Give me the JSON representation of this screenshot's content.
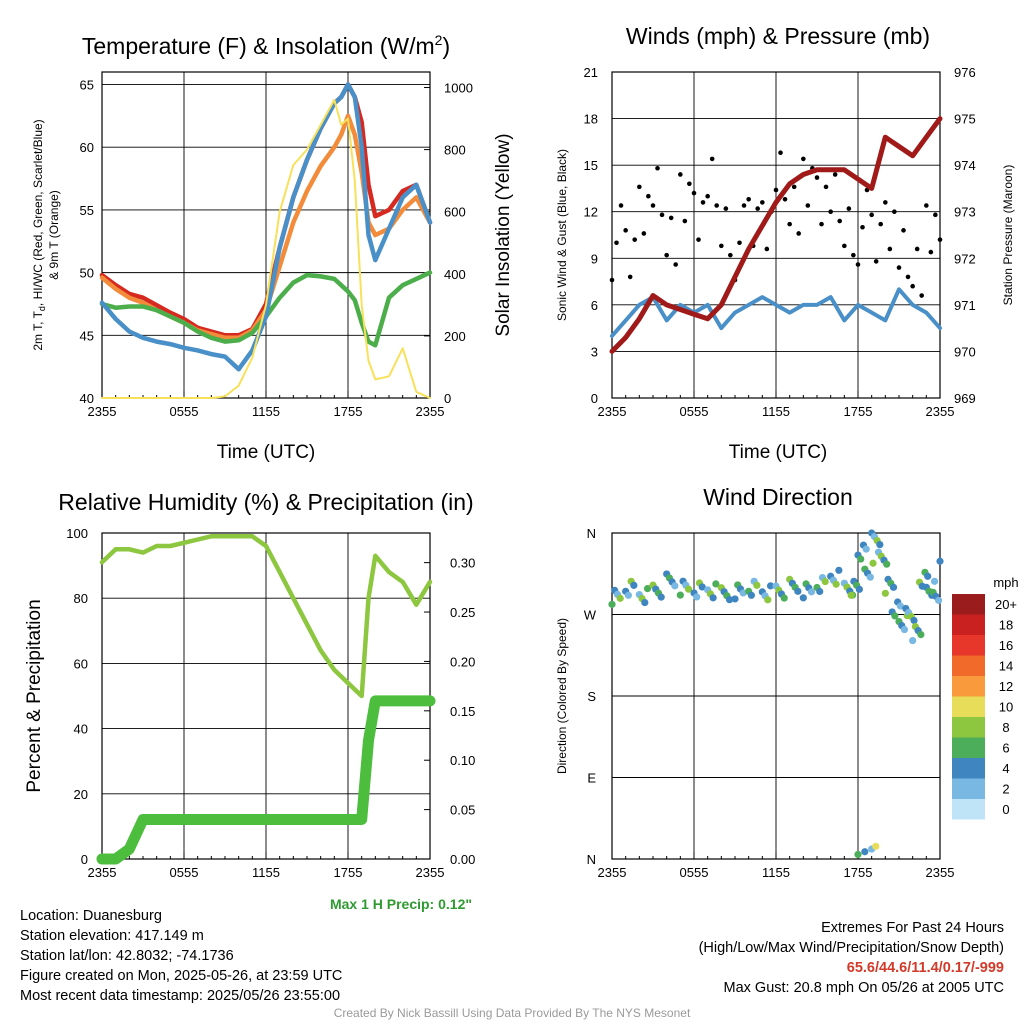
{
  "colors": {
    "red": "#d62920",
    "orange": "#f28b3a",
    "green": "#4cae4a",
    "blue": "#4a90c8",
    "yellow": "#f7e15a",
    "maroon": "#a01a1a",
    "black": "#000000",
    "lightgreen": "#8dc63f",
    "precipgreen": "#4cbd3c"
  },
  "time_ticks": [
    "2355",
    "0555",
    "1155",
    "1755",
    "2355"
  ],
  "chart_data": [
    {
      "type": "line",
      "title": "Temperature (F) & Insolation (W/m",
      "title_sup": "2",
      "title_tail": ")",
      "xlabel": "Time (UTC)",
      "ylabel": "2m T, T",
      "ylabel_sub": "d",
      "ylabel_rest": ", HI/WC (Red, Green, Scarlet/Blue)",
      "ylabel2": "& 9m T (Orange)",
      "ylabel_right": "Solar Insolation (Yellow)",
      "ylim": [
        40,
        66
      ],
      "ylim_right": [
        0,
        1050
      ],
      "yticks": [
        40,
        45,
        50,
        55,
        60,
        65
      ],
      "yticks_right": [
        0,
        200,
        400,
        600,
        800,
        1000
      ],
      "x_hours": [
        0,
        1,
        2,
        3,
        4,
        5,
        6,
        7,
        8,
        9,
        10,
        11,
        12,
        13,
        14,
        15,
        16,
        17,
        17.5,
        18,
        18.5,
        19,
        19.5,
        20,
        21,
        22,
        23,
        24
      ],
      "series": [
        {
          "name": "2m T",
          "color": "red",
          "values": [
            49.8,
            49,
            48.3,
            48,
            47.4,
            46.8,
            46.3,
            45.6,
            45.3,
            45,
            45,
            45.5,
            47.5,
            52,
            56,
            59,
            61.5,
            63.5,
            64,
            65,
            64,
            62,
            57,
            54.5,
            55,
            56.5,
            57,
            54
          ]
        },
        {
          "name": "9m T",
          "color": "orange",
          "values": [
            49.6,
            48.7,
            48,
            47.6,
            47,
            46.5,
            46,
            45.4,
            45.1,
            44.8,
            44.8,
            45.4,
            47,
            50.5,
            54,
            56.5,
            58.5,
            60,
            61,
            62.5,
            61,
            58,
            54,
            53,
            53.5,
            55,
            56,
            54
          ]
        },
        {
          "name": "Td",
          "color": "green",
          "values": [
            47.5,
            47.2,
            47.3,
            47.3,
            47,
            46.5,
            46,
            45.3,
            44.8,
            44.5,
            44.6,
            45.2,
            46.5,
            48,
            49.2,
            49.8,
            49.7,
            49.5,
            49,
            48.5,
            47.8,
            46,
            44.5,
            44.2,
            48,
            49,
            49.5,
            50
          ]
        },
        {
          "name": "HI/WC",
          "color": "blue",
          "values": [
            47.6,
            46.3,
            45.3,
            44.8,
            44.5,
            44.3,
            44,
            43.8,
            43.5,
            43.3,
            42.3,
            43.8,
            46.5,
            52,
            56,
            59,
            61.5,
            63.5,
            64,
            65,
            64,
            60,
            53,
            51,
            53.5,
            56,
            57,
            54
          ]
        },
        {
          "name": "Insolation",
          "color": "yellow",
          "axis": "right",
          "values": [
            0,
            0,
            0,
            0,
            0,
            0,
            0,
            0,
            0,
            5,
            40,
            130,
            300,
            600,
            750,
            800,
            880,
            960,
            880,
            900,
            700,
            300,
            120,
            60,
            70,
            160,
            20,
            0
          ]
        }
      ]
    },
    {
      "type": "line",
      "title": "Winds (mph) & Pressure (mb)",
      "xlabel": "Time (UTC)",
      "ylabel": "Sonic Wind & Gust (Blue, Black)",
      "ylabel_right": "Station Pressure (Maroon)",
      "ylim": [
        0,
        21
      ],
      "ylim_right": [
        969,
        976
      ],
      "yticks": [
        0,
        3,
        6,
        9,
        12,
        15,
        18,
        21
      ],
      "yticks_right": [
        969,
        970,
        971,
        972,
        973,
        974,
        975,
        976
      ],
      "x_hours": [
        0,
        1,
        2,
        3,
        4,
        5,
        6,
        7,
        8,
        9,
        10,
        11,
        12,
        13,
        14,
        15,
        16,
        17,
        18,
        19,
        20,
        21,
        22,
        23,
        24
      ],
      "series": [
        {
          "name": "Sonic Wind",
          "color": "blue",
          "values": [
            4,
            5,
            6,
            6.5,
            5,
            6,
            5.5,
            6,
            4.5,
            5.5,
            6,
            6.5,
            6,
            5.5,
            6,
            6,
            6.5,
            5,
            6,
            5.5,
            5,
            7,
            6,
            5.5,
            4.5
          ]
        },
        {
          "name": "Gust",
          "color": "black",
          "type": "scatter",
          "values": [
            10,
            9,
            13,
            13,
            11,
            12,
            12,
            13,
            11,
            10,
            11,
            12,
            14,
            13,
            13,
            13,
            12,
            11,
            11,
            10,
            12,
            9,
            9,
            10,
            9
          ]
        },
        {
          "name": "Station Pressure",
          "color": "maroon",
          "axis": "right",
          "values": [
            970,
            970.3,
            970.7,
            971.2,
            971,
            970.9,
            970.8,
            970.7,
            971,
            971.6,
            972.2,
            972.7,
            973.2,
            973.6,
            973.8,
            973.9,
            973.9,
            973.9,
            973.7,
            973.5,
            974.6,
            974.4,
            974.2,
            974.6,
            975
          ]
        }
      ]
    },
    {
      "type": "line",
      "title": "Relative Humidity (%) & Precipitation (in)",
      "xlabel": "",
      "ylabel": "Percent & Precipitation",
      "ylim": [
        0,
        100
      ],
      "ylim_right": [
        0,
        0.33
      ],
      "yticks": [
        0,
        20,
        40,
        60,
        80,
        100
      ],
      "yticks_right_labels": [
        "0.00",
        "0.05",
        "0.10",
        "0.15",
        "0.20",
        "0.25",
        "0.30"
      ],
      "x_hours": [
        0,
        1,
        2,
        3,
        4,
        5,
        6,
        7,
        8,
        9,
        10,
        11,
        12,
        13,
        14,
        15,
        16,
        17,
        18,
        18.5,
        19,
        19.5,
        20,
        21,
        22,
        23,
        24
      ],
      "series": [
        {
          "name": "Relative Humidity",
          "color": "lightgreen",
          "values": [
            91,
            95,
            95,
            94,
            96,
            96,
            97,
            98,
            99,
            99,
            99,
            99,
            96,
            88,
            80,
            72,
            64,
            58,
            54,
            52,
            50,
            80,
            93,
            88,
            85,
            78,
            85
          ]
        },
        {
          "name": "Precipitation",
          "color": "precipgreen",
          "axis": "right",
          "values": [
            0,
            0,
            0.01,
            0.04,
            0.04,
            0.04,
            0.04,
            0.04,
            0.04,
            0.04,
            0.04,
            0.04,
            0.04,
            0.04,
            0.04,
            0.04,
            0.04,
            0.04,
            0.04,
            0.04,
            0.04,
            0.12,
            0.16,
            0.16,
            0.16,
            0.16,
            0.16
          ]
        }
      ],
      "precip_note": "Max 1 H Precip: 0.12\""
    },
    {
      "type": "scatter",
      "title": "Wind Direction",
      "ylabel": "Direction (Colored By Speed)",
      "yticks_labels": [
        "N",
        "E",
        "S",
        "W",
        "N"
      ],
      "ylim": [
        0,
        360
      ],
      "legend_title": "mph",
      "legend_labels": [
        "20+",
        "18",
        "16",
        "14",
        "12",
        "10",
        "8",
        "6",
        "4",
        "2",
        "0"
      ],
      "legend_colors": [
        "#9b1c1c",
        "#c92020",
        "#e6372a",
        "#f26a2a",
        "#f99b3d",
        "#e8dd58",
        "#8dc63f",
        "#4cae5a",
        "#3f86c0",
        "#78b8e2",
        "#bfe3f7"
      ],
      "series": [
        {
          "name": "Direction",
          "x_hours": [
            0,
            1,
            2,
            3,
            4,
            5,
            6,
            7,
            8,
            9,
            10,
            11,
            12,
            13,
            14,
            15,
            16,
            17,
            17.5,
            18,
            18.5,
            19,
            19.5,
            20,
            20.5,
            21,
            21.5,
            22,
            22.5,
            23,
            23.5,
            24
          ],
          "values": [
            290,
            300,
            292,
            298,
            306,
            298,
            296,
            295,
            293,
            296,
            300,
            295,
            297,
            300,
            295,
            302,
            310,
            298,
            300,
            340,
            320,
            356,
            330,
            300,
            275,
            260,
            270,
            250,
            310,
            300,
            290,
            320
          ]
        }
      ]
    }
  ],
  "info": {
    "location": "Location: Duanesburg",
    "elevation": "Station elevation: 417.149 m",
    "latlon": "Station lat/lon: 42.8032; -74.1736",
    "created": "Figure created on Mon, 2025-05-26, at 23:59 UTC",
    "recent": "Most recent data timestamp: 2025/05/26 23:55:00"
  },
  "extremes": {
    "heading": "Extremes For Past 24 Hours",
    "sub": "(High/Low/Max Wind/Precipitation/Snow Depth)",
    "values": "65.6/44.6/11.4/0.17/-999",
    "gust": "Max Gust: 20.8 mph On 05/26 at 2005 UTC"
  },
  "credit": "Created By Nick Bassill Using Data Provided By The NYS Mesonet"
}
